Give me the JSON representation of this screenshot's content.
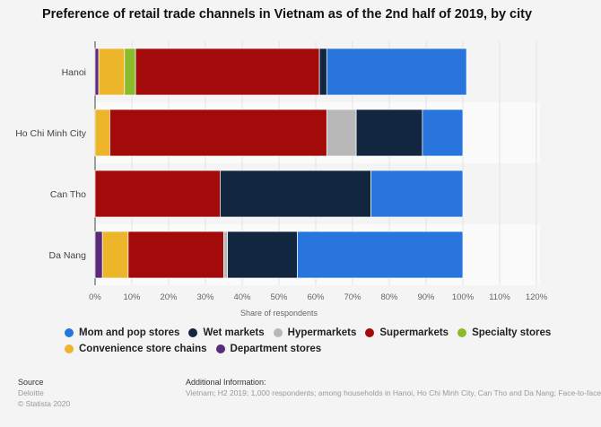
{
  "chart_data": {
    "type": "bar",
    "orientation": "horizontal",
    "stacked": true,
    "title": "Preference of retail trade channels in Vietnam as of the 2nd half of 2019, by city",
    "xlabel": "Share of respondents",
    "xlim": [
      0,
      120
    ],
    "ticks": [
      "0%",
      "10%",
      "20%",
      "30%",
      "40%",
      "50%",
      "60%",
      "70%",
      "80%",
      "90%",
      "100%",
      "110%",
      "120%"
    ],
    "grid": true,
    "legend_placement": "bottom",
    "categories": [
      "Hanoi",
      "Ho Chi Minh City",
      "Can Tho",
      "Da Nang"
    ],
    "series": [
      {
        "name": "Department stores",
        "color": "#5a2a7a",
        "values": [
          1,
          0,
          0,
          2
        ]
      },
      {
        "name": "Convenience store chains",
        "color": "#ecb52a",
        "values": [
          7,
          4,
          0,
          7
        ]
      },
      {
        "name": "Specialty stores",
        "color": "#8abb2a",
        "values": [
          3,
          0,
          0,
          0
        ]
      },
      {
        "name": "Supermarkets",
        "color": "#a30b0b",
        "values": [
          50,
          59,
          34,
          26
        ]
      },
      {
        "name": "Hypermarkets",
        "color": "#b8b8b8",
        "values": [
          0,
          8,
          0,
          1
        ]
      },
      {
        "name": "Wet markets",
        "color": "#12263f",
        "values": [
          2,
          18,
          41,
          19
        ]
      },
      {
        "name": "Mom and pop stores",
        "color": "#2876dd",
        "values": [
          38,
          11,
          25,
          45
        ]
      }
    ],
    "legend_order": [
      "Mom and pop stores",
      "Wet markets",
      "Hypermarkets",
      "Supermarkets",
      "Specialty stores",
      "Convenience store chains",
      "Department stores"
    ]
  },
  "footer": {
    "source_label": "Source",
    "source": "Deloitte",
    "copyright": "© Statista 2020",
    "info_label": "Additional Information:",
    "info": "Vietnam; H2 2019; 1,000 respondents; among households in Hanoi, Ho Chi Minh City, Can Tho and Da Nang; Face-to-face"
  }
}
